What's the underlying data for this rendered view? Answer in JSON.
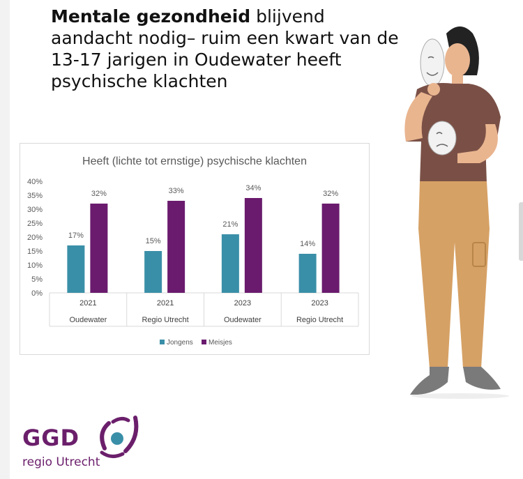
{
  "headline": {
    "bold": "Mentale gezondheid",
    "rest": " blijvend aandacht nodig– ruim een kwart van de 13-17 jarigen in Oudewater heeft psychische klachten"
  },
  "logo": {
    "name": "GGD",
    "sub": "regio Utrecht"
  },
  "colors": {
    "jongens": "#3a8fa8",
    "meisjes": "#6a1b6e",
    "brand": "#6b1f6b"
  },
  "chart_data": {
    "type": "bar",
    "title": "Heeft (lichte tot ernstige) psychische klachten",
    "categories": [
      {
        "year": "2021",
        "region": "Oudewater"
      },
      {
        "year": "2021",
        "region": "Regio Utrecht"
      },
      {
        "year": "2023",
        "region": "Oudewater"
      },
      {
        "year": "2023",
        "region": "Regio Utrecht"
      }
    ],
    "series": [
      {
        "name": "Jongens",
        "values": [
          17,
          15,
          21,
          14
        ],
        "labels": [
          "17%",
          "15%",
          "21%",
          "14%"
        ]
      },
      {
        "name": "Meisjes",
        "values": [
          32,
          33,
          34,
          32
        ],
        "labels": [
          "32%",
          "33%",
          "34%",
          "32%"
        ]
      }
    ],
    "yticks": [
      "0%",
      "5%",
      "10%",
      "15%",
      "20%",
      "25%",
      "30%",
      "35%",
      "40%"
    ],
    "ylim": [
      0,
      40
    ],
    "grid": false,
    "legend": "bottom"
  }
}
